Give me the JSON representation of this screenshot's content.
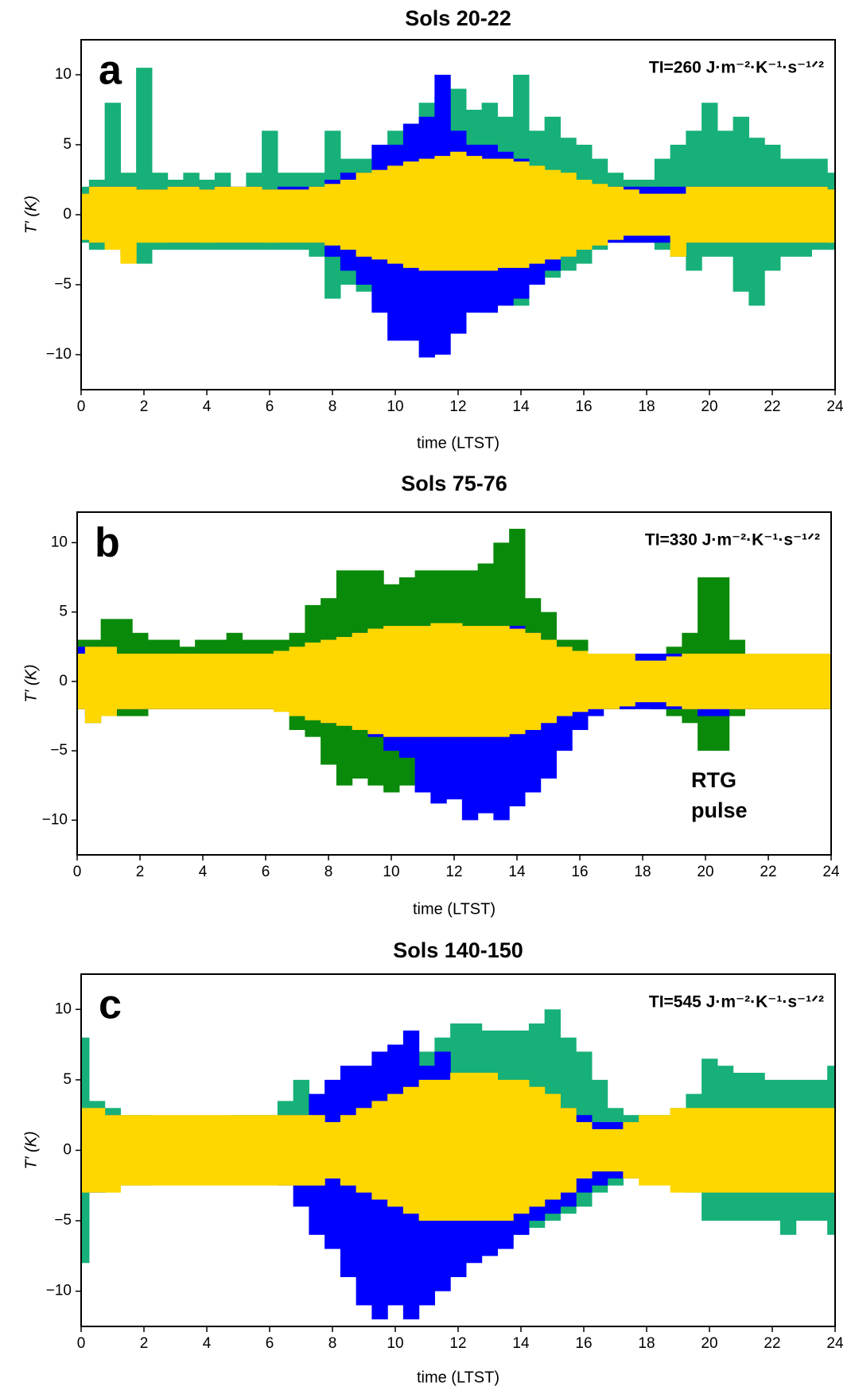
{
  "chart_data": [
    {
      "type": "scatter",
      "title": "Sols 20-22",
      "panel_label": "a",
      "annotation": "TI=260  J·m⁻²·K⁻¹·s⁻¹ᐟ²",
      "xlabel": "time (LTST)",
      "ylabel": "T′ (K)",
      "xlim": [
        0,
        24
      ],
      "xticks": [
        0,
        2,
        4,
        6,
        8,
        10,
        12,
        14,
        16,
        18,
        20,
        22,
        24
      ],
      "ylim": [
        -12.5,
        12.5
      ],
      "yticks": [
        {
          "value": -10,
          "label": "−10"
        },
        {
          "value": -5,
          "label": "−5"
        },
        0,
        5,
        10
      ],
      "x": [
        0,
        0.5,
        1,
        1.5,
        2,
        2.5,
        3,
        3.5,
        4,
        4.5,
        5,
        5.5,
        6,
        6.5,
        7,
        7.5,
        8,
        8.5,
        9,
        9.5,
        10,
        10.5,
        11,
        11.5,
        12,
        12.5,
        13,
        13.5,
        14,
        14.5,
        15,
        15.5,
        16,
        16.5,
        17,
        17.5,
        18,
        18.5,
        19,
        19.5,
        20,
        20.5,
        21,
        21.5,
        22,
        22.5,
        23,
        23.5,
        24
      ],
      "series": [
        {
          "color": "#16b078",
          "high": [
            2,
            2.5,
            8,
            3,
            10.5,
            3,
            2.5,
            3,
            2.5,
            3,
            2,
            3,
            6,
            3,
            3,
            3,
            6,
            4,
            4,
            5,
            6,
            6.5,
            8,
            8.5,
            9,
            7.5,
            8,
            7,
            10,
            6,
            7,
            5.5,
            5,
            4,
            3,
            2.5,
            2.5,
            4,
            5,
            6,
            8,
            6,
            7,
            5.5,
            5,
            4,
            4,
            4,
            3
          ],
          "low": [
            -2,
            -2.5,
            -2.5,
            -3,
            -3.5,
            -2.5,
            -2.5,
            -2.5,
            -2.5,
            -2.5,
            -2.5,
            -2.5,
            -2.5,
            -2.5,
            -2.5,
            -3,
            -6,
            -5,
            -5.5,
            -6.5,
            -6,
            -6.5,
            -7,
            -6.5,
            -7,
            -6.5,
            -7,
            -6,
            -6.5,
            -5,
            -4.5,
            -4,
            -3.5,
            -2.5,
            -2,
            -2,
            -2,
            -2.5,
            -3,
            -4,
            -3,
            -3,
            -5.5,
            -6.5,
            -4,
            -3,
            -3,
            -2.5,
            -2.5
          ]
        },
        {
          "color": "#0000ff",
          "high": [
            1.5,
            2,
            2,
            2,
            1.8,
            1.8,
            2,
            2,
            1.8,
            2,
            2,
            2,
            1.8,
            2,
            2,
            2,
            2.5,
            3,
            3,
            5,
            5,
            6.5,
            7,
            10,
            6,
            5,
            5,
            4.5,
            4,
            3,
            3,
            2.5,
            2.5,
            2,
            2,
            2,
            2,
            2,
            2,
            2,
            2,
            2,
            2,
            2,
            2,
            2,
            2,
            2,
            1.5
          ],
          "low": [
            -1.5,
            -2,
            -2,
            -2,
            -1.8,
            -1.8,
            -2,
            -2,
            -1.8,
            -2,
            -2,
            -2,
            -1.8,
            -2,
            -2,
            -2,
            -3,
            -4,
            -5,
            -7,
            -9,
            -9,
            -10.2,
            -10,
            -8.5,
            -7,
            -7,
            -6.5,
            -6,
            -5,
            -4,
            -3,
            -2.5,
            -2,
            -2,
            -2,
            -2,
            -2,
            -2,
            -2,
            -2,
            -2,
            -2,
            -2,
            -2,
            -2,
            -2,
            -2,
            -1.5
          ]
        },
        {
          "color": "#ffd700",
          "high": [
            1.5,
            2,
            2,
            2,
            1.8,
            1.8,
            2,
            2,
            1.8,
            2,
            2,
            2,
            1.8,
            1.8,
            1.8,
            2,
            2.2,
            2.5,
            3,
            3.2,
            3.5,
            3.8,
            4,
            4.2,
            4.5,
            4.2,
            4,
            4,
            3.8,
            3.5,
            3.2,
            3,
            2.5,
            2.2,
            2,
            1.8,
            1.5,
            1.5,
            1.5,
            2,
            2,
            2,
            2,
            2,
            2,
            2,
            2,
            2,
            1.8
          ],
          "low": [
            -1.8,
            -2,
            -2.5,
            -3.5,
            -2,
            -2,
            -2,
            -2,
            -2,
            -2,
            -2,
            -2,
            -2,
            -2,
            -2,
            -2,
            -2.2,
            -2.5,
            -3,
            -3.2,
            -3.5,
            -3.8,
            -4,
            -4,
            -4,
            -4,
            -4,
            -3.8,
            -3.8,
            -3.5,
            -3.2,
            -3,
            -2.5,
            -2.2,
            -1.8,
            -1.5,
            -1.5,
            -1.5,
            -3,
            -2,
            -2,
            -2,
            -2,
            -2,
            -2,
            -2,
            -2,
            -2,
            -2
          ]
        }
      ]
    },
    {
      "type": "scatter",
      "title": "Sols 75-76",
      "panel_label": "b",
      "annotation": "TI=330 J·m⁻²·K⁻¹·s⁻¹ᐟ²",
      "notes": [
        "RTG",
        "pulse"
      ],
      "xlabel": "time (LTST)",
      "ylabel": "T′ (K)",
      "xlim": [
        0,
        24
      ],
      "xticks": [
        0,
        2,
        4,
        6,
        8,
        10,
        12,
        14,
        16,
        18,
        20,
        22,
        24
      ],
      "ylim": [
        -12.5,
        12.2
      ],
      "yticks": [
        {
          "value": -10,
          "label": "−10"
        },
        {
          "value": -5,
          "label": "−5"
        },
        0,
        5,
        10
      ],
      "x": [
        0,
        0.5,
        1,
        1.5,
        2,
        2.5,
        3,
        3.5,
        4,
        4.5,
        5,
        5.5,
        6,
        6.5,
        7,
        7.5,
        8,
        8.5,
        9,
        9.5,
        10,
        10.5,
        11,
        11.5,
        12,
        12.5,
        13,
        13.5,
        14,
        14.5,
        15,
        15.5,
        16,
        16.5,
        17,
        17.5,
        18,
        18.5,
        19,
        19.5,
        20,
        20.5,
        21,
        21.5,
        22,
        22.5,
        23,
        23.5,
        24
      ],
      "series": [
        {
          "color": "#0a8a0a",
          "high": [
            3,
            3,
            4.5,
            4.5,
            3.5,
            3,
            3,
            2.5,
            3,
            3,
            3.5,
            3,
            3,
            3,
            3.5,
            5.5,
            6,
            8,
            8,
            8,
            7,
            7.5,
            8,
            8,
            8,
            8,
            8.5,
            10,
            11,
            6,
            5,
            3,
            3,
            2,
            2,
            2,
            2,
            2,
            2.5,
            3.5,
            7.5,
            7.5,
            3,
            2,
            2,
            2,
            2,
            2,
            2
          ],
          "low": [
            -2,
            -3,
            -2.5,
            -2.5,
            -2.5,
            -2,
            -2,
            -2,
            -2,
            -2,
            -2,
            -2,
            -2,
            -2,
            -3.5,
            -4,
            -6,
            -7.5,
            -7,
            -7.5,
            -8,
            -7.5,
            -8,
            -7.5,
            -7,
            -7,
            -7,
            -6.5,
            -7,
            -6,
            -5,
            -3.5,
            -2.5,
            -2,
            -2,
            -2,
            -1.5,
            -2,
            -2.5,
            -3,
            -5,
            -5,
            -2.5,
            -2,
            -2,
            -2,
            -2,
            -2,
            -2
          ]
        },
        {
          "color": "#0000ff",
          "high": [
            2.5,
            2.5,
            2.5,
            2,
            2,
            2,
            2,
            2,
            2,
            2,
            2,
            2,
            2,
            2,
            2,
            2.5,
            3,
            3,
            3.5,
            3.5,
            4,
            4,
            4,
            4,
            4,
            4,
            4,
            4,
            4,
            3.5,
            3,
            2.5,
            2,
            2,
            2,
            2,
            2,
            2,
            2,
            2,
            2,
            2,
            2,
            2,
            2,
            2,
            2,
            2,
            2
          ],
          "low": [
            -2,
            -2.5,
            -2.5,
            -2,
            -2,
            -2,
            -2,
            -2,
            -2,
            -2,
            -2,
            -2,
            -2,
            -2,
            -2,
            -2.5,
            -3,
            -3,
            -3.5,
            -4,
            -5,
            -5.5,
            -8,
            -8.8,
            -8.5,
            -10,
            -9.5,
            -10,
            -9,
            -8,
            -7,
            -5,
            -3.5,
            -2.5,
            -2,
            -2,
            -2,
            -2,
            -2,
            -2,
            -2.5,
            -2.5,
            -2,
            -2,
            -2,
            -2,
            -2,
            -2,
            -2
          ]
        },
        {
          "color": "#ffd700",
          "high": [
            2,
            2.5,
            2.5,
            2,
            2,
            2,
            2,
            2,
            2,
            2,
            2,
            2,
            2,
            2.2,
            2.5,
            2.8,
            3,
            3.2,
            3.5,
            3.8,
            4,
            4,
            4,
            4.2,
            4.2,
            4,
            4,
            4,
            3.8,
            3.5,
            3,
            2.5,
            2.2,
            2,
            2,
            2,
            1.5,
            1.5,
            1.8,
            2,
            2,
            2,
            2,
            2,
            2,
            2,
            2,
            2,
            2
          ],
          "low": [
            -2,
            -3,
            -2.5,
            -2,
            -2,
            -2,
            -2,
            -2,
            -2,
            -2,
            -2,
            -2,
            -2,
            -2.2,
            -2.5,
            -2.8,
            -3,
            -3.2,
            -3.5,
            -3.8,
            -4,
            -4,
            -4,
            -4,
            -4,
            -4,
            -4,
            -4,
            -3.8,
            -3.5,
            -3,
            -2.5,
            -2.2,
            -2,
            -2,
            -1.8,
            -1.5,
            -1.5,
            -1.8,
            -2,
            -2,
            -2,
            -2,
            -2,
            -2,
            -2,
            -2,
            -2,
            -2
          ]
        }
      ]
    },
    {
      "type": "scatter",
      "title": "Sols 140-150",
      "panel_label": "c",
      "annotation": "TI=545  J·m⁻²·K⁻¹·s⁻¹ᐟ²",
      "xlabel": "time (LTST)",
      "ylabel": "T′ (K)",
      "xlim": [
        0,
        24
      ],
      "xticks": [
        0,
        2,
        4,
        6,
        8,
        10,
        12,
        14,
        16,
        18,
        20,
        22,
        24
      ],
      "ylim": [
        -12.5,
        12.5
      ],
      "yticks": [
        {
          "value": -10,
          "label": "−10"
        },
        {
          "value": -5,
          "label": "−5"
        },
        0,
        5,
        10
      ],
      "x": [
        0,
        0.5,
        1,
        1.5,
        2,
        2.5,
        3,
        3.5,
        4,
        4.5,
        5,
        5.5,
        6,
        6.5,
        7,
        7.5,
        8,
        8.5,
        9,
        9.5,
        10,
        10.5,
        11,
        11.5,
        12,
        12.5,
        13,
        13.5,
        14,
        14.5,
        15,
        15.5,
        16,
        16.5,
        17,
        17.5,
        18,
        18.5,
        19,
        19.5,
        20,
        20.5,
        21,
        21.5,
        22,
        22.5,
        23,
        23.5,
        24
      ],
      "series": [
        {
          "color": "#16b078",
          "high": [
            8,
            3.5,
            3,
            2.5,
            2.5,
            2,
            2,
            2,
            2,
            2,
            2.5,
            2.5,
            2.5,
            3.5,
            5,
            3,
            3,
            2.5,
            3,
            4.5,
            5,
            6,
            7,
            8,
            9,
            9,
            8.5,
            8.5,
            8.5,
            9,
            10,
            8,
            7,
            5,
            3,
            2.5,
            2.5,
            2.5,
            3,
            4,
            6.5,
            6,
            5.5,
            5.5,
            5,
            5,
            5,
            5,
            6
          ],
          "low": [
            -8,
            -3,
            -2.5,
            -2.5,
            -2.5,
            -2,
            -2,
            -2,
            -2,
            -2,
            -2,
            -2,
            -2,
            -2,
            -2,
            -2,
            -2,
            -2,
            -2.5,
            -3,
            -3.5,
            -4,
            -4,
            -5,
            -6,
            -6.5,
            -7,
            -6.5,
            -6,
            -5.5,
            -5,
            -4.5,
            -4,
            -3,
            -2.5,
            -2,
            -2,
            -2,
            -2.5,
            -3,
            -5,
            -5,
            -5,
            -5,
            -5,
            -6,
            -5,
            -5,
            -6
          ]
        },
        {
          "color": "#0000ff",
          "high": [
            2.5,
            2.5,
            2.5,
            2,
            2,
            2,
            2,
            2,
            2,
            2,
            2,
            2,
            2,
            2.5,
            2.5,
            4,
            5,
            6,
            6,
            7,
            7.5,
            8.5,
            6,
            7,
            5,
            5,
            4.5,
            4.5,
            4,
            4,
            3.5,
            3,
            2.5,
            2,
            2,
            2,
            2,
            2,
            2,
            2,
            2,
            2,
            2,
            2,
            2,
            2,
            2,
            2,
            2
          ],
          "low": [
            -2.5,
            -3,
            -2.5,
            -2,
            -2,
            -2,
            -2,
            -2,
            -2,
            -2,
            -2,
            -2,
            -2,
            -2.5,
            -4,
            -6,
            -7,
            -9,
            -11,
            -12,
            -11,
            -12,
            -11,
            -10,
            -9,
            -8,
            -7.5,
            -7,
            -6,
            -5,
            -4.5,
            -4,
            -3,
            -2.5,
            -2,
            -2,
            -2,
            -2,
            -2,
            -2,
            -2,
            -2,
            -2,
            -2,
            -2,
            -2,
            -2,
            -2,
            -2
          ]
        },
        {
          "color": "#ffd700",
          "high": [
            3,
            3,
            2.5,
            2.5,
            2.5,
            2.5,
            2.5,
            2.5,
            2.5,
            2.5,
            2.5,
            2.5,
            2.5,
            2.5,
            2.5,
            2.5,
            2,
            2.5,
            3,
            3.5,
            4,
            4.5,
            5,
            5,
            5.5,
            5.5,
            5.5,
            5,
            5,
            4.5,
            4,
            3,
            2,
            1.5,
            1.5,
            2,
            2.5,
            2.5,
            3,
            3,
            3,
            3,
            3,
            3,
            3,
            3,
            3,
            3,
            3
          ],
          "low": [
            -3,
            -3,
            -3,
            -2.5,
            -2.5,
            -2.5,
            -2.5,
            -2.5,
            -2.5,
            -2.5,
            -2.5,
            -2.5,
            -2.5,
            -2.5,
            -2.5,
            -2.5,
            -2,
            -2.5,
            -3,
            -3.5,
            -4,
            -4.5,
            -5,
            -5,
            -5,
            -5,
            -5,
            -5,
            -4.5,
            -4,
            -3.5,
            -3,
            -2,
            -1.5,
            -1.5,
            -2,
            -2.5,
            -2.5,
            -3,
            -3,
            -3,
            -3,
            -3,
            -3,
            -3,
            -3,
            -3,
            -3,
            -3
          ]
        }
      ]
    }
  ]
}
